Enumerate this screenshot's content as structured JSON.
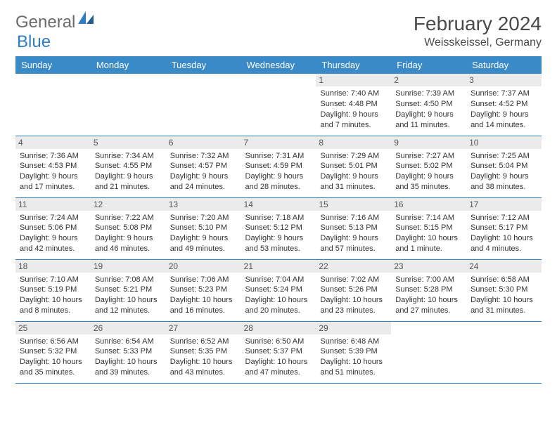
{
  "logo": {
    "text_gray": "General",
    "text_blue": "Blue"
  },
  "title": {
    "month": "February 2024",
    "location": "Weisskeissel, Germany"
  },
  "colors": {
    "header_bg": "#3a8ac8",
    "header_text": "#ffffff",
    "daynum_bg": "#ebebeb",
    "row_border": "#2f7dc4",
    "logo_gray": "#6b6b6b",
    "logo_blue": "#2f7dc4",
    "body_text": "#333333"
  },
  "fonts": {
    "title_month_size": 28,
    "title_location_size": 16,
    "header_size": 13,
    "daynum_size": 12,
    "dayinfo_size": 11
  },
  "day_headers": [
    "Sunday",
    "Monday",
    "Tuesday",
    "Wednesday",
    "Thursday",
    "Friday",
    "Saturday"
  ],
  "weeks": [
    [
      {
        "n": "",
        "sunrise": "",
        "sunset": "",
        "daylight": ""
      },
      {
        "n": "",
        "sunrise": "",
        "sunset": "",
        "daylight": ""
      },
      {
        "n": "",
        "sunrise": "",
        "sunset": "",
        "daylight": ""
      },
      {
        "n": "",
        "sunrise": "",
        "sunset": "",
        "daylight": ""
      },
      {
        "n": "1",
        "sunrise": "Sunrise: 7:40 AM",
        "sunset": "Sunset: 4:48 PM",
        "daylight": "Daylight: 9 hours and 7 minutes."
      },
      {
        "n": "2",
        "sunrise": "Sunrise: 7:39 AM",
        "sunset": "Sunset: 4:50 PM",
        "daylight": "Daylight: 9 hours and 11 minutes."
      },
      {
        "n": "3",
        "sunrise": "Sunrise: 7:37 AM",
        "sunset": "Sunset: 4:52 PM",
        "daylight": "Daylight: 9 hours and 14 minutes."
      }
    ],
    [
      {
        "n": "4",
        "sunrise": "Sunrise: 7:36 AM",
        "sunset": "Sunset: 4:53 PM",
        "daylight": "Daylight: 9 hours and 17 minutes."
      },
      {
        "n": "5",
        "sunrise": "Sunrise: 7:34 AM",
        "sunset": "Sunset: 4:55 PM",
        "daylight": "Daylight: 9 hours and 21 minutes."
      },
      {
        "n": "6",
        "sunrise": "Sunrise: 7:32 AM",
        "sunset": "Sunset: 4:57 PM",
        "daylight": "Daylight: 9 hours and 24 minutes."
      },
      {
        "n": "7",
        "sunrise": "Sunrise: 7:31 AM",
        "sunset": "Sunset: 4:59 PM",
        "daylight": "Daylight: 9 hours and 28 minutes."
      },
      {
        "n": "8",
        "sunrise": "Sunrise: 7:29 AM",
        "sunset": "Sunset: 5:01 PM",
        "daylight": "Daylight: 9 hours and 31 minutes."
      },
      {
        "n": "9",
        "sunrise": "Sunrise: 7:27 AM",
        "sunset": "Sunset: 5:02 PM",
        "daylight": "Daylight: 9 hours and 35 minutes."
      },
      {
        "n": "10",
        "sunrise": "Sunrise: 7:25 AM",
        "sunset": "Sunset: 5:04 PM",
        "daylight": "Daylight: 9 hours and 38 minutes."
      }
    ],
    [
      {
        "n": "11",
        "sunrise": "Sunrise: 7:24 AM",
        "sunset": "Sunset: 5:06 PM",
        "daylight": "Daylight: 9 hours and 42 minutes."
      },
      {
        "n": "12",
        "sunrise": "Sunrise: 7:22 AM",
        "sunset": "Sunset: 5:08 PM",
        "daylight": "Daylight: 9 hours and 46 minutes."
      },
      {
        "n": "13",
        "sunrise": "Sunrise: 7:20 AM",
        "sunset": "Sunset: 5:10 PM",
        "daylight": "Daylight: 9 hours and 49 minutes."
      },
      {
        "n": "14",
        "sunrise": "Sunrise: 7:18 AM",
        "sunset": "Sunset: 5:12 PM",
        "daylight": "Daylight: 9 hours and 53 minutes."
      },
      {
        "n": "15",
        "sunrise": "Sunrise: 7:16 AM",
        "sunset": "Sunset: 5:13 PM",
        "daylight": "Daylight: 9 hours and 57 minutes."
      },
      {
        "n": "16",
        "sunrise": "Sunrise: 7:14 AM",
        "sunset": "Sunset: 5:15 PM",
        "daylight": "Daylight: 10 hours and 1 minute."
      },
      {
        "n": "17",
        "sunrise": "Sunrise: 7:12 AM",
        "sunset": "Sunset: 5:17 PM",
        "daylight": "Daylight: 10 hours and 4 minutes."
      }
    ],
    [
      {
        "n": "18",
        "sunrise": "Sunrise: 7:10 AM",
        "sunset": "Sunset: 5:19 PM",
        "daylight": "Daylight: 10 hours and 8 minutes."
      },
      {
        "n": "19",
        "sunrise": "Sunrise: 7:08 AM",
        "sunset": "Sunset: 5:21 PM",
        "daylight": "Daylight: 10 hours and 12 minutes."
      },
      {
        "n": "20",
        "sunrise": "Sunrise: 7:06 AM",
        "sunset": "Sunset: 5:23 PM",
        "daylight": "Daylight: 10 hours and 16 minutes."
      },
      {
        "n": "21",
        "sunrise": "Sunrise: 7:04 AM",
        "sunset": "Sunset: 5:24 PM",
        "daylight": "Daylight: 10 hours and 20 minutes."
      },
      {
        "n": "22",
        "sunrise": "Sunrise: 7:02 AM",
        "sunset": "Sunset: 5:26 PM",
        "daylight": "Daylight: 10 hours and 23 minutes."
      },
      {
        "n": "23",
        "sunrise": "Sunrise: 7:00 AM",
        "sunset": "Sunset: 5:28 PM",
        "daylight": "Daylight: 10 hours and 27 minutes."
      },
      {
        "n": "24",
        "sunrise": "Sunrise: 6:58 AM",
        "sunset": "Sunset: 5:30 PM",
        "daylight": "Daylight: 10 hours and 31 minutes."
      }
    ],
    [
      {
        "n": "25",
        "sunrise": "Sunrise: 6:56 AM",
        "sunset": "Sunset: 5:32 PM",
        "daylight": "Daylight: 10 hours and 35 minutes."
      },
      {
        "n": "26",
        "sunrise": "Sunrise: 6:54 AM",
        "sunset": "Sunset: 5:33 PM",
        "daylight": "Daylight: 10 hours and 39 minutes."
      },
      {
        "n": "27",
        "sunrise": "Sunrise: 6:52 AM",
        "sunset": "Sunset: 5:35 PM",
        "daylight": "Daylight: 10 hours and 43 minutes."
      },
      {
        "n": "28",
        "sunrise": "Sunrise: 6:50 AM",
        "sunset": "Sunset: 5:37 PM",
        "daylight": "Daylight: 10 hours and 47 minutes."
      },
      {
        "n": "29",
        "sunrise": "Sunrise: 6:48 AM",
        "sunset": "Sunset: 5:39 PM",
        "daylight": "Daylight: 10 hours and 51 minutes."
      },
      {
        "n": "",
        "sunrise": "",
        "sunset": "",
        "daylight": ""
      },
      {
        "n": "",
        "sunrise": "",
        "sunset": "",
        "daylight": ""
      }
    ]
  ]
}
